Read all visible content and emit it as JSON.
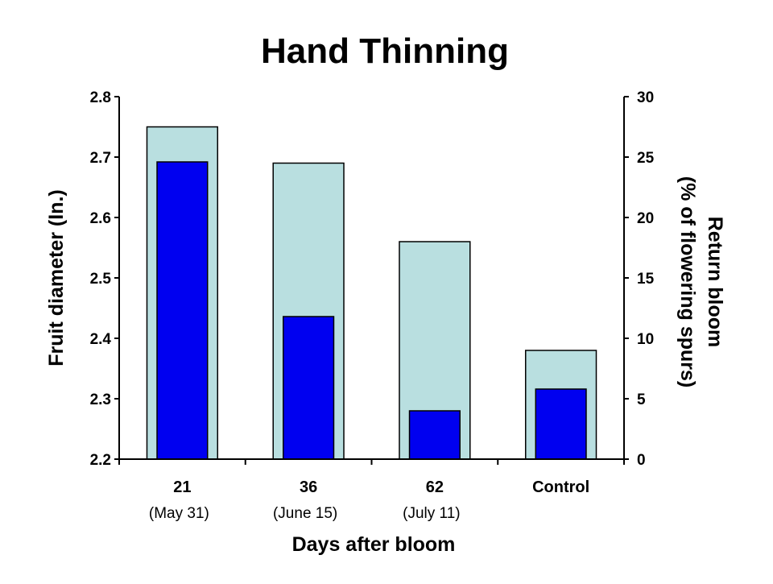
{
  "chart_data": {
    "type": "bar",
    "title": "Hand Thinning",
    "xlabel": "Days after bloom",
    "ylabel": "Fruit diameter (In.)",
    "y2label_lines": [
      "Return bloom",
      "(% of flowering spurs)"
    ],
    "categories": [
      "21",
      "36",
      "62",
      "Control"
    ],
    "category_sublabels": [
      "(May 31)",
      "(June 15)",
      "(July 11)",
      ""
    ],
    "ylim": [
      2.2,
      2.8
    ],
    "y2lim": [
      0,
      30
    ],
    "yticks": [
      "2.2",
      "2.3",
      "2.4",
      "2.5",
      "2.6",
      "2.7",
      "2.8"
    ],
    "y2ticks": [
      "0",
      "5",
      "10",
      "15",
      "20",
      "25",
      "30"
    ],
    "series": [
      {
        "axis": "left",
        "color": "#b9dfe0",
        "values": [
          2.75,
          2.69,
          2.56,
          2.38
        ]
      },
      {
        "axis": "right",
        "color": "#0000f0",
        "values": [
          24.6,
          11.8,
          4.0,
          5.8
        ]
      }
    ],
    "grid": false,
    "legend": "none"
  }
}
